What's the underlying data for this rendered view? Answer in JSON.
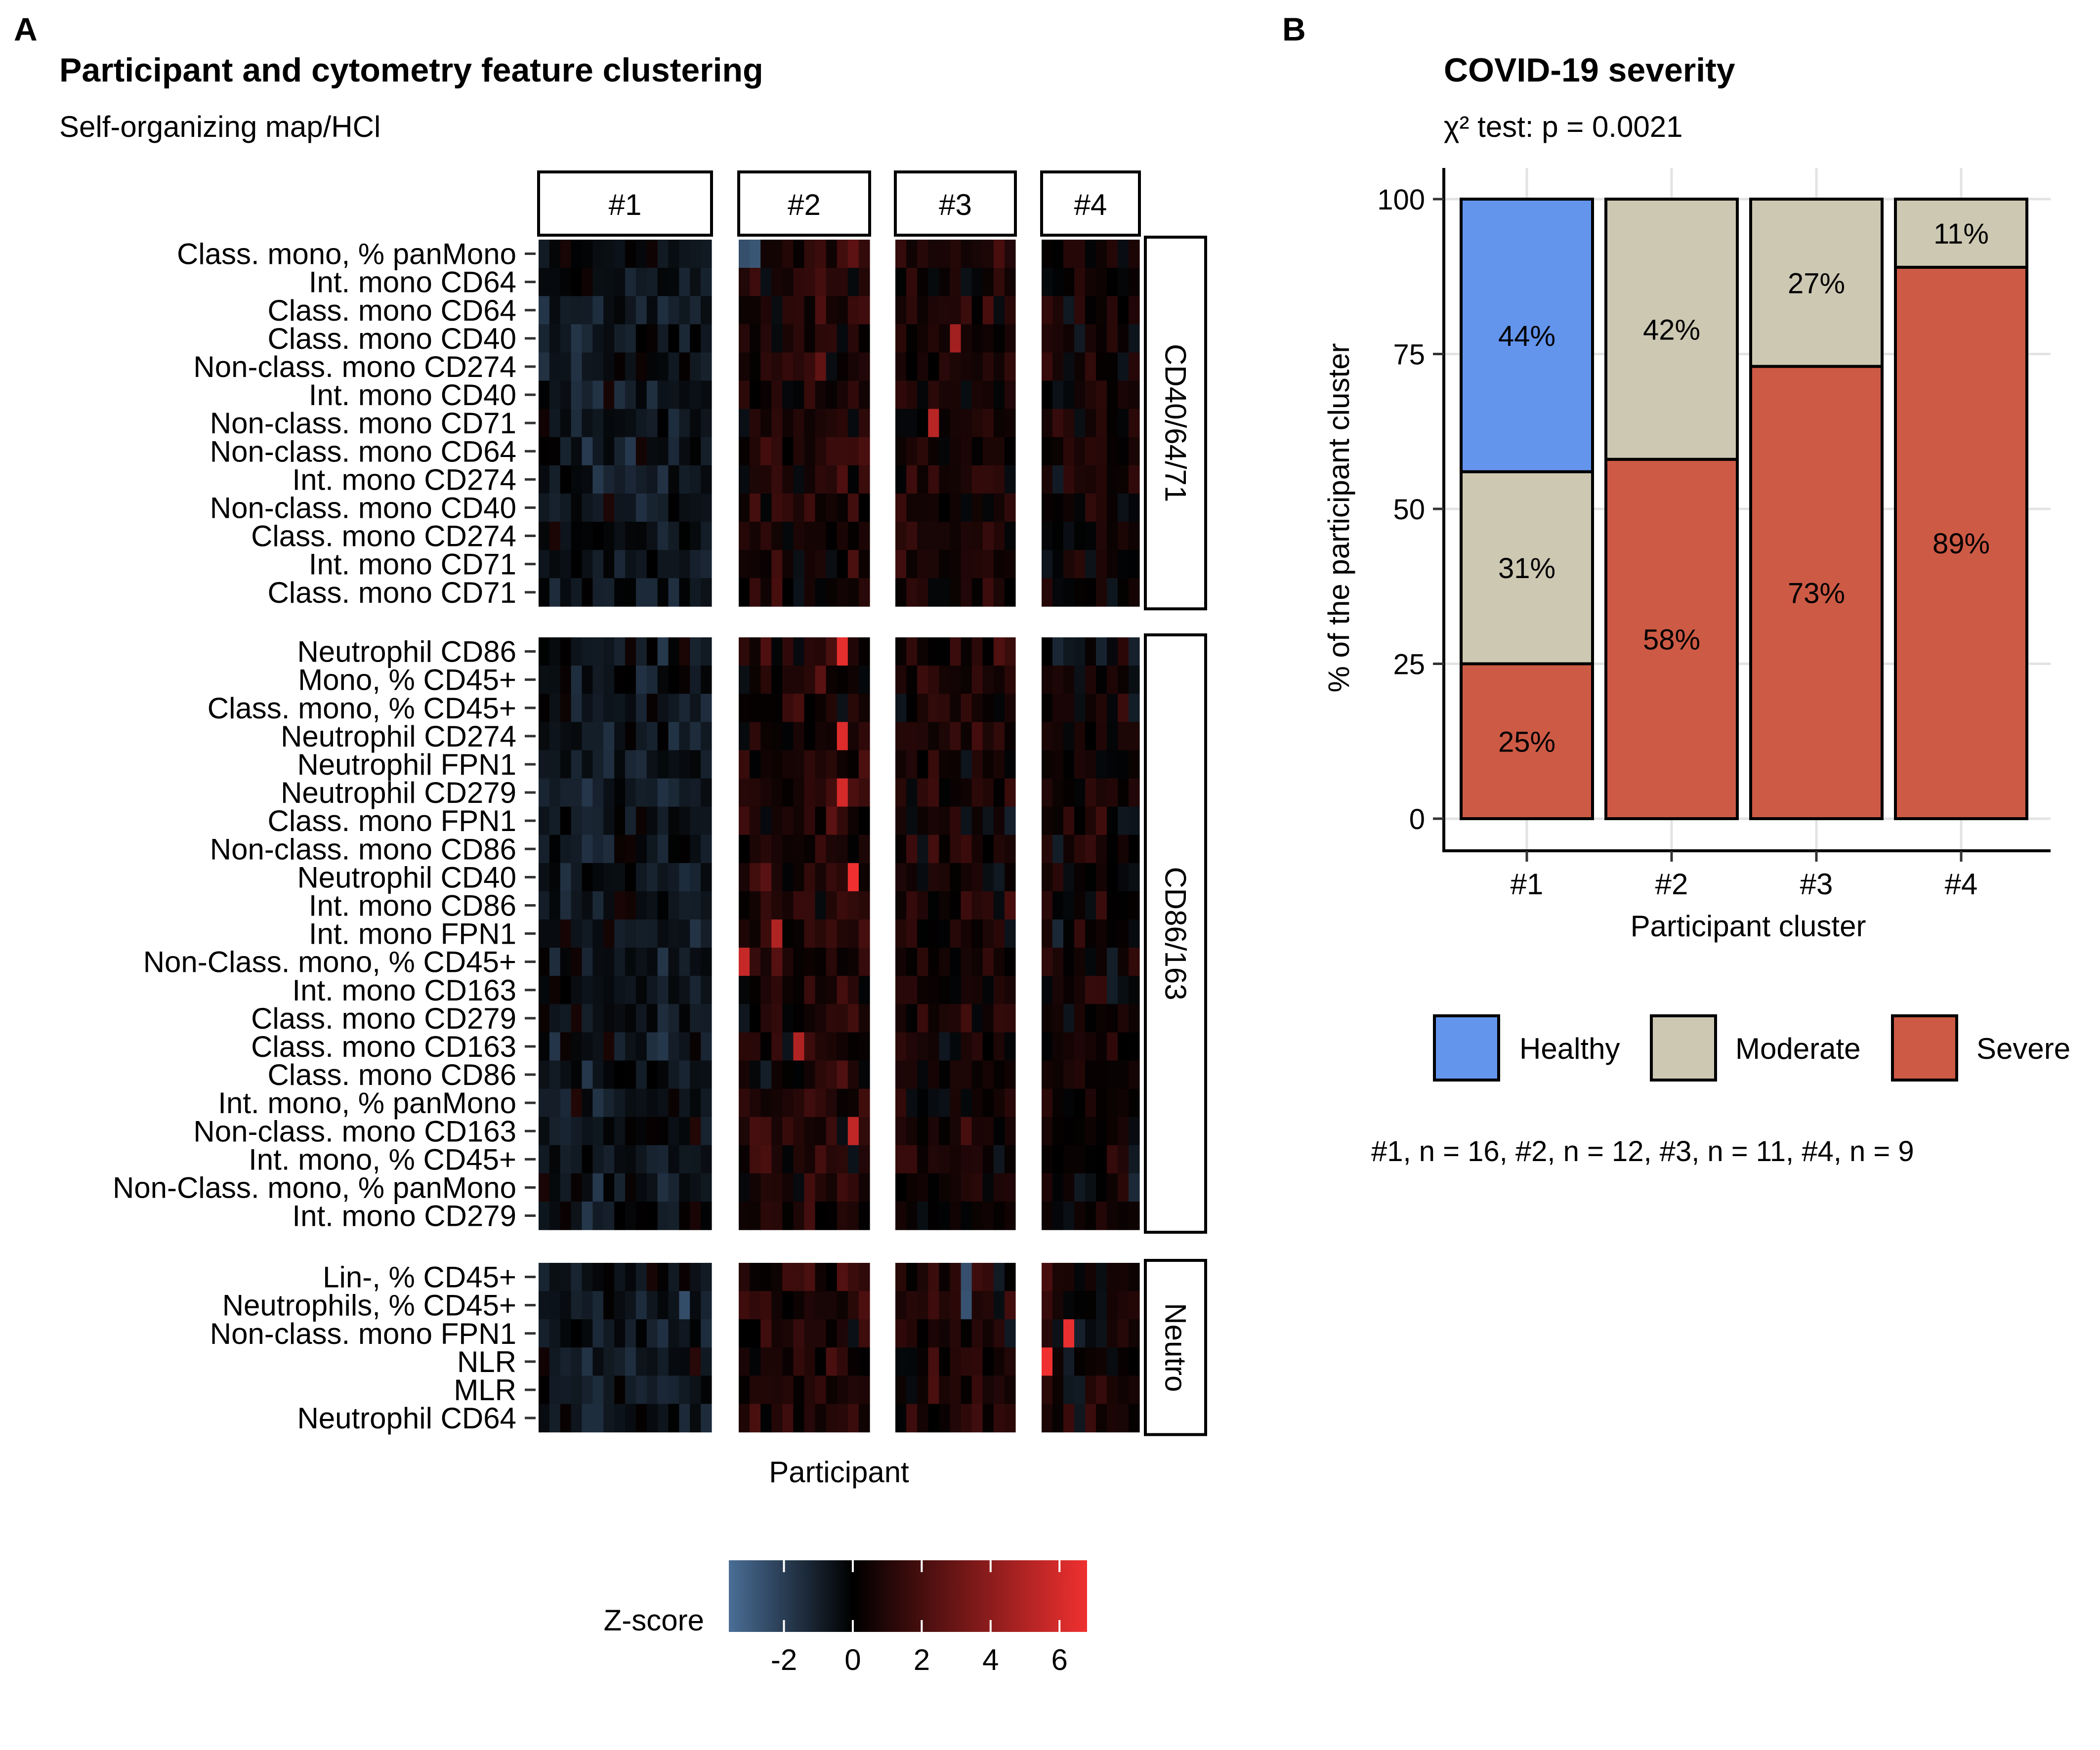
{
  "panel_a": {
    "letter": "A",
    "title": "Participant and cytometry feature clustering",
    "subtitle": "Self-organizing map/HCl",
    "xlabel": "Participant"
  },
  "panel_b": {
    "letter": "B",
    "title": "COVID-19 severity",
    "subtitle": "χ² test: p = 0.0021",
    "caption": "#1, n = 16, #2, n = 12, #3, n = 11, #4, n = 9"
  },
  "colors": {
    "healthy": "#6495ED",
    "moderate": "#CDC8B2",
    "severe": "#CD5A45",
    "z_low": "#4A6E96",
    "z_zero": "#000000",
    "z_high": "#F03030"
  },
  "chart_data": [
    {
      "type": "heatmap",
      "columns": [
        {
          "label": "#1",
          "n": 16,
          "seed": 11,
          "bias": -0.55,
          "spread": 0.8
        },
        {
          "label": "#2",
          "n": 12,
          "seed": 23,
          "bias": 0.9,
          "spread": 1.0
        },
        {
          "label": "#3",
          "n": 11,
          "seed": 37,
          "bias": 0.55,
          "spread": 0.9
        },
        {
          "label": "#4",
          "n": 9,
          "seed": 53,
          "bias": 0.25,
          "spread": 0.9
        }
      ],
      "row_groups": [
        {
          "label": "CD40/64/71",
          "rows": [
            "Class. mono, % panMono",
            "Int. mono CD64",
            "Class. mono CD64",
            "Class. mono CD40",
            "Non-class. mono CD274",
            "Int. mono CD40",
            "Non-class. mono CD71",
            "Non-class. mono CD64",
            "Int. mono CD274",
            "Non-class. mono CD40",
            "Class. mono CD274",
            "Int. mono CD71",
            "Class. mono CD71"
          ]
        },
        {
          "label": "CD86/163",
          "rows": [
            "Neutrophil CD86",
            "Mono, % CD45+",
            "Class. mono, % CD45+",
            "Neutrophil CD274",
            "Neutrophil FPN1",
            "Neutrophil CD279",
            "Class. mono FPN1",
            "Non-class. mono CD86",
            "Neutrophil CD40",
            "Int. mono CD86",
            "Int. mono FPN1",
            "Non-Class. mono, % CD45+",
            "Int. mono CD163",
            "Class. mono CD279",
            "Class. mono CD163",
            "Class. mono CD86",
            "Int. mono, % panMono",
            "Non-class. mono CD163",
            "Int. mono, % CD45+",
            "Non-Class. mono, % panMono",
            "Int. mono CD279"
          ]
        },
        {
          "label": "Neutro",
          "rows": [
            "Lin-, % CD45+",
            "Neutrophils, % CD45+",
            "Non-class. mono FPN1",
            "NLR",
            "MLR",
            "Neutrophil CD64"
          ]
        }
      ],
      "hotspots": [
        {
          "group": 1,
          "row": 0,
          "column": 1,
          "cell": 9,
          "z": 6.5
        },
        {
          "group": 1,
          "row": 3,
          "column": 1,
          "cell": 9,
          "z": 6.3
        },
        {
          "group": 1,
          "row": 5,
          "column": 1,
          "cell": 9,
          "z": 6.0
        },
        {
          "group": 1,
          "row": 8,
          "column": 1,
          "cell": 10,
          "z": 6.8
        },
        {
          "group": 1,
          "row": 11,
          "column": 1,
          "cell": 0,
          "z": 5.6
        },
        {
          "group": 1,
          "row": 10,
          "column": 1,
          "cell": 3,
          "z": 5.0
        },
        {
          "group": 1,
          "row": 14,
          "column": 1,
          "cell": 5,
          "z": 5.0
        },
        {
          "group": 1,
          "row": 17,
          "column": 1,
          "cell": 10,
          "z": 5.4
        },
        {
          "group": 0,
          "row": 6,
          "column": 2,
          "cell": 3,
          "z": 5.2
        },
        {
          "group": 0,
          "row": 3,
          "column": 2,
          "cell": 5,
          "z": 4.6
        },
        {
          "group": 0,
          "row": 0,
          "column": 1,
          "cell": 0,
          "z": -2.6
        },
        {
          "group": 0,
          "row": 0,
          "column": 1,
          "cell": 1,
          "z": -2.8
        },
        {
          "group": 2,
          "row": 2,
          "column": 3,
          "cell": 2,
          "z": 6.6
        },
        {
          "group": 2,
          "row": 3,
          "column": 3,
          "cell": 0,
          "z": 6.9
        },
        {
          "group": 2,
          "row": 0,
          "column": 2,
          "cell": 6,
          "z": -2.6
        },
        {
          "group": 2,
          "row": 1,
          "column": 2,
          "cell": 6,
          "z": -2.7
        },
        {
          "group": 2,
          "row": 1,
          "column": 0,
          "cell": 13,
          "z": -2.5
        }
      ],
      "legend": {
        "title": "Z-score",
        "min": -3.6,
        "max": 6.8,
        "ticks": [
          -2,
          0,
          2,
          4,
          6
        ],
        "tick_labels": [
          "-2",
          "0",
          "2",
          "4",
          "6"
        ]
      }
    },
    {
      "type": "bar",
      "stacked": true,
      "categories": [
        "#1",
        "#2",
        "#3",
        "#4"
      ],
      "series": [
        {
          "name": "Healthy",
          "values": [
            44,
            0,
            0,
            0
          ],
          "labels": [
            "44%",
            "",
            "",
            ""
          ]
        },
        {
          "name": "Moderate",
          "values": [
            31,
            42,
            27,
            11
          ],
          "labels": [
            "31%",
            "42%",
            "27%",
            "11%"
          ]
        },
        {
          "name": "Severe",
          "values": [
            25,
            58,
            73,
            89
          ],
          "labels": [
            "25%",
            "58%",
            "73%",
            "89%"
          ]
        }
      ],
      "xlabel": "Participant cluster",
      "ylabel": "% of the participant cluster",
      "ylim": [
        0,
        100
      ],
      "yticks": [
        0,
        25,
        50,
        75,
        100
      ],
      "ytick_labels": [
        "0",
        "25",
        "50",
        "75",
        "100"
      ],
      "grid": true,
      "legend_position": "bottom"
    }
  ]
}
